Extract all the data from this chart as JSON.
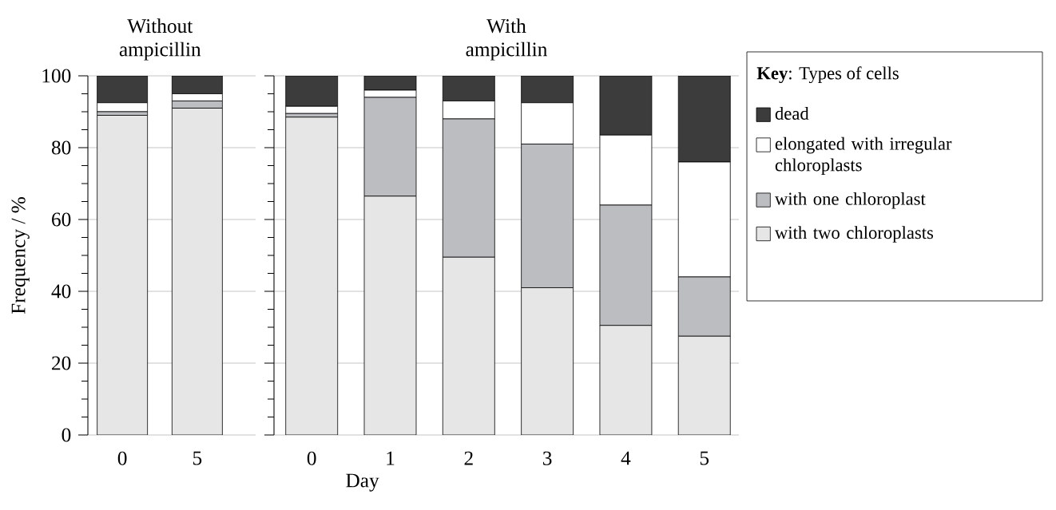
{
  "chart_data": [
    {
      "type": "bar",
      "stacked": true,
      "title": "Without ampicillin",
      "ylabel": "Frequency / %",
      "categories": [
        "0",
        "5"
      ],
      "series": [
        {
          "color": "#e6e6e6",
          "values": [
            89,
            91
          ]
        },
        {
          "color": "#bcbdc0",
          "values": [
            1,
            2
          ]
        },
        {
          "color": "#ffffff",
          "values": [
            2.5,
            2
          ]
        },
        {
          "color": "#3c3c3c",
          "values": [
            7.5,
            5
          ]
        }
      ],
      "ylim": [
        0,
        100
      ],
      "yticks": [
        0,
        {
          "value": 5,
          "label": null
        },
        {
          "value": 10,
          "label": null
        },
        {
          "value": 15,
          "label": null
        },
        20,
        {
          "value": 25,
          "label": null
        },
        {
          "value": 30,
          "label": null
        },
        {
          "value": 35,
          "label": null
        },
        40,
        {
          "value": 45,
          "label": null
        },
        {
          "value": 50,
          "label": null
        },
        {
          "value": 55,
          "label": null
        },
        60,
        {
          "value": 65,
          "label": null
        },
        {
          "value": 70,
          "label": null
        },
        {
          "value": 75,
          "label": null
        },
        80,
        {
          "value": 85,
          "label": null
        },
        {
          "value": 90,
          "label": null
        },
        {
          "value": 95,
          "label": null
        },
        100
      ],
      "grid": "y"
    },
    {
      "type": "bar",
      "stacked": true,
      "title": "With ampicillin",
      "xlabel": "Day",
      "legend_title": "**Key**: Types of cells",
      "categories": [
        "0",
        "1",
        "2",
        "3",
        "4",
        "5"
      ],
      "series": [
        {
          "name": "with two chloroplasts",
          "color": "#e6e6e6",
          "values": [
            88.5,
            66.5,
            49.5,
            41,
            30.5,
            27.5
          ]
        },
        {
          "name": "with one chloroplast",
          "color": "#bcbdc0",
          "values": [
            1,
            27.5,
            38.5,
            40,
            33.5,
            16.5
          ]
        },
        {
          "name": "elongated with irregular chloroplasts",
          "color": "#ffffff",
          "values": [
            2,
            2,
            5,
            11.5,
            19.5,
            32
          ]
        },
        {
          "name": "dead",
          "color": "#3c3c3c",
          "values": [
            8.5,
            4,
            7,
            7.5,
            16.5,
            24
          ]
        }
      ],
      "ylim": [
        0,
        100
      ],
      "yticks": [
        0,
        {
          "value": 5,
          "label": null
        },
        {
          "value": 10,
          "label": null
        },
        {
          "value": 15,
          "label": null
        },
        20,
        {
          "value": 25,
          "label": null
        },
        {
          "value": 30,
          "label": null
        },
        {
          "value": 35,
          "label": null
        },
        40,
        {
          "value": 45,
          "label": null
        },
        {
          "value": 50,
          "label": null
        },
        {
          "value": 55,
          "label": null
        },
        60,
        {
          "value": 65,
          "label": null
        },
        {
          "value": 70,
          "label": null
        },
        {
          "value": 75,
          "label": null
        },
        80,
        {
          "value": 85,
          "label": null
        },
        {
          "value": 90,
          "label": null
        },
        {
          "value": 95,
          "label": null
        },
        100
      ],
      "grid": "y",
      "tick_labels": "x",
      "legend": "right"
    }
  ]
}
